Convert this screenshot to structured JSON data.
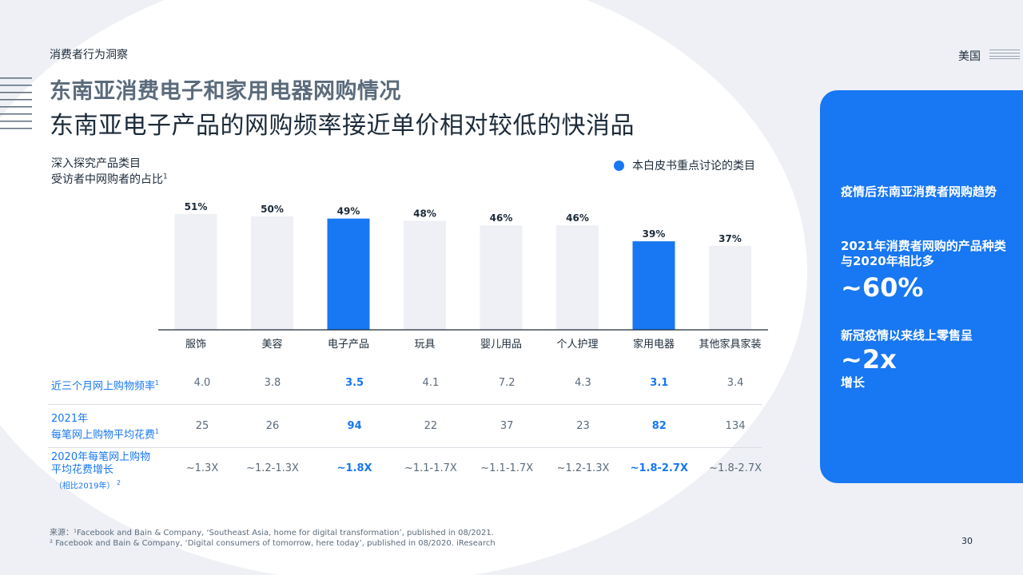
{
  "header": {
    "section_label": "消费者行为洞察",
    "region_label": "美国"
  },
  "title": {
    "line1": "东南亚消费电子和家用电器网购情况",
    "line2": "东南亚电子产品的网购频率接近单价相对较低的快消品"
  },
  "chart_meta": {
    "subtitle_line1": "深入探究产品类目",
    "subtitle_line2": "受访者中网购者的占比",
    "subtitle_sup": "1",
    "legend_label": "本白皮书重点讨论的类目"
  },
  "colors": {
    "highlight": "#1877f2",
    "normal_bar": "#eef0f5",
    "text_dark": "#1c2b39",
    "text_grey": "#5b6b7b"
  },
  "chart_data": {
    "type": "bar",
    "categories": [
      "服饰",
      "美容",
      "电子产品",
      "玩具",
      "婴儿用品",
      "个人护理",
      "家用电器",
      "其他家具家装"
    ],
    "values": [
      51,
      50,
      49,
      48,
      46,
      46,
      39,
      37
    ],
    "value_labels": [
      "51%",
      "50%",
      "49%",
      "48%",
      "46%",
      "46%",
      "39%",
      "37%"
    ],
    "highlighted": [
      false,
      false,
      true,
      false,
      false,
      false,
      true,
      false
    ],
    "ylim": [
      0,
      51
    ],
    "grid": false,
    "legend_position": "top-right",
    "xlabel": "",
    "ylabel": ""
  },
  "table": {
    "rows": [
      {
        "label_lines": [
          "近三个月网上购物频率"
        ],
        "label_sup": "1",
        "label_note": "",
        "cells": [
          "4.0",
          "3.8",
          "3.5",
          "4.1",
          "7.2",
          "4.3",
          "3.1",
          "3.4"
        ]
      },
      {
        "label_lines": [
          "2021年",
          "每笔网上购物平均花费"
        ],
        "label_sup": "1",
        "label_note": "",
        "cells": [
          "25",
          "26",
          "94",
          "22",
          "37",
          "23",
          "82",
          "134"
        ]
      },
      {
        "label_lines": [
          "2020年每笔网上购物",
          "平均花费增长"
        ],
        "label_sup": "2",
        "label_note": "（相比2019年）",
        "cells": [
          "~1.3X",
          "~1.2-1.3X",
          "~1.8X",
          "~1.1-1.7X",
          "~1.1-1.7X",
          "~1.2-1.3X",
          "~1.8-2.7X",
          "~1.8-2.7X"
        ]
      }
    ]
  },
  "footnotes": {
    "line1": "来源：¹Facebook and Bain & Company, ‘Southeast Asia, home for digital transformation’, published in 08/2021.",
    "line2": "² Facebook and Bain & Company, ‘Digital consumers of tomorrow, here today’, published in 08/2020. iResearch"
  },
  "page_number": "30",
  "panel": {
    "heading": "疫情后东南亚消费者网购趋势",
    "stat1_label": "2021年消费者网购的产品种类与2020年相比多",
    "stat1_value": "~60%",
    "stat2_label": "新冠疫情以来线上零售呈",
    "stat2_value": "~2x",
    "stat2_suffix": "增长"
  },
  "icons": {
    "header_lines": "horizontal-lines-icon",
    "side_lines": "horizontal-lines-icon",
    "legend_dot": "legend-dot-icon"
  }
}
